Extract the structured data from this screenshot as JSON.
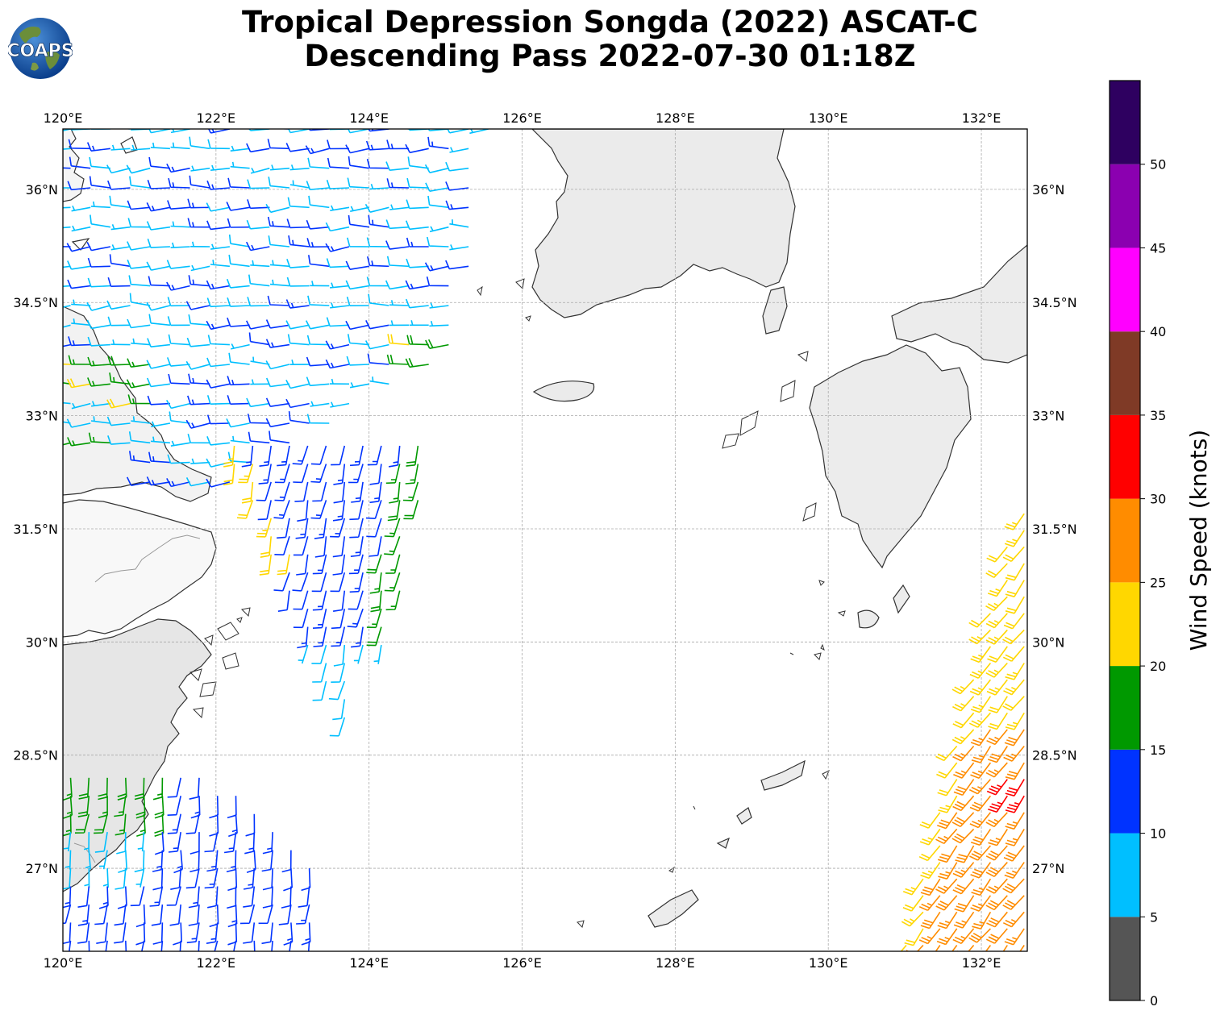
{
  "title_line1": "Tropical Depression Songda (2022) ASCAT-C",
  "title_line2": "Descending Pass 2022-07-30 01:18Z",
  "logo_text": "COAPS",
  "map": {
    "lon_range": [
      120,
      132.6
    ],
    "lat_range": [
      25.9,
      36.8
    ],
    "lon_ticks": [
      "120°E",
      "122°E",
      "124°E",
      "126°E",
      "128°E",
      "130°E",
      "132°E"
    ],
    "lat_ticks": [
      "27°N",
      "28.5°N",
      "30°N",
      "31.5°N",
      "33°N",
      "34.5°N",
      "36°N"
    ],
    "grid": true
  },
  "colorbar": {
    "label": "Wind Speed (knots)",
    "ticks": [
      "0",
      "5",
      "10",
      "15",
      "20",
      "25",
      "30",
      "35",
      "40",
      "45",
      "50"
    ],
    "bins": [
      {
        "min": 0,
        "max": 5,
        "color": "#555555"
      },
      {
        "min": 5,
        "max": 10,
        "color": "#00bfff"
      },
      {
        "min": 10,
        "max": 15,
        "color": "#0033ff"
      },
      {
        "min": 15,
        "max": 20,
        "color": "#009900"
      },
      {
        "min": 20,
        "max": 25,
        "color": "#ffd700"
      },
      {
        "min": 25,
        "max": 30,
        "color": "#ff8c00"
      },
      {
        "min": 30,
        "max": 35,
        "color": "#ff0000"
      },
      {
        "min": 35,
        "max": 40,
        "color": "#7f3a26"
      },
      {
        "min": 40,
        "max": 45,
        "color": "#ff00ff"
      },
      {
        "min": 45,
        "max": 50,
        "color": "#8b00b0"
      },
      {
        "min": 50,
        "max": 55,
        "color": "#2e0060"
      }
    ]
  },
  "swaths": [
    {
      "name": "north-swath",
      "lon_min": 120.1,
      "lon_max": 125.8,
      "lat_min": 31.9,
      "lat_max": 36.8,
      "speed": "blue-cyan",
      "direction": "westerly",
      "edge": "green-yellow"
    },
    {
      "name": "middle-swath",
      "lon_min": 121.9,
      "lon_max": 124.9,
      "lat_min": 28.9,
      "lat_max": 32.6,
      "speed": "blue",
      "direction": "southerly"
    },
    {
      "name": "southwest-swath",
      "lon_min": 120.0,
      "lon_max": 123.3,
      "lat_min": 25.9,
      "lat_max": 28.2,
      "speed": "blue",
      "direction": "southerly"
    },
    {
      "name": "southeast-swath",
      "lon_min": 130.8,
      "lon_max": 132.6,
      "lat_min": 25.9,
      "lat_max": 31.7,
      "speed": "yellow-orange-red",
      "direction": "southwesterly"
    }
  ]
}
